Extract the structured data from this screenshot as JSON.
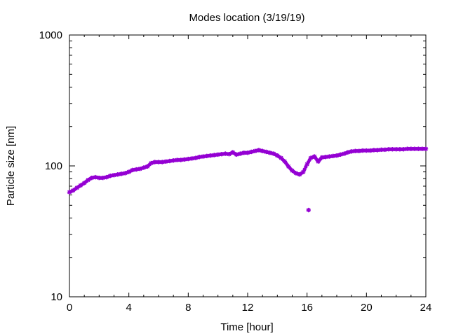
{
  "chart_data": {
    "type": "scatter",
    "title": "Modes location (3/19/19)",
    "xlabel": "Time [hour]",
    "ylabel": "Particle size [nm]",
    "xlim": [
      0,
      24
    ],
    "ylim": [
      10,
      1000
    ],
    "yscale": "log",
    "grid": false,
    "legend": "none",
    "marker_color": "#9400d3",
    "x_ticks": [
      0,
      4,
      8,
      12,
      16,
      20,
      24
    ],
    "x_tick_labels": [
      "0",
      "4",
      "8",
      "12",
      "16",
      "20",
      "24"
    ],
    "y_ticks": [
      10,
      100,
      1000
    ],
    "y_tick_labels": [
      "10",
      "100",
      "1000"
    ],
    "series": [
      {
        "name": "",
        "points": [
          [
            0.0,
            63
          ],
          [
            0.25,
            65
          ],
          [
            0.5,
            68
          ],
          [
            0.75,
            71
          ],
          [
            1.0,
            74
          ],
          [
            1.25,
            78
          ],
          [
            1.5,
            81
          ],
          [
            1.75,
            82
          ],
          [
            2.0,
            81
          ],
          [
            2.25,
            81
          ],
          [
            2.5,
            82
          ],
          [
            2.75,
            84
          ],
          [
            3.0,
            85
          ],
          [
            3.25,
            86
          ],
          [
            3.5,
            87
          ],
          [
            3.75,
            88
          ],
          [
            4.0,
            90
          ],
          [
            4.25,
            93
          ],
          [
            4.5,
            94
          ],
          [
            4.75,
            95
          ],
          [
            5.0,
            97
          ],
          [
            5.25,
            99
          ],
          [
            5.5,
            105
          ],
          [
            5.75,
            107
          ],
          [
            6.0,
            107
          ],
          [
            6.25,
            107
          ],
          [
            6.5,
            108
          ],
          [
            6.75,
            109
          ],
          [
            7.0,
            110
          ],
          [
            7.25,
            111
          ],
          [
            7.5,
            111
          ],
          [
            7.75,
            112
          ],
          [
            8.0,
            113
          ],
          [
            8.25,
            114
          ],
          [
            8.5,
            115
          ],
          [
            8.75,
            117
          ],
          [
            9.0,
            118
          ],
          [
            9.25,
            119
          ],
          [
            9.5,
            120
          ],
          [
            9.75,
            121
          ],
          [
            10.0,
            122
          ],
          [
            10.25,
            123
          ],
          [
            10.5,
            124
          ],
          [
            10.75,
            123
          ],
          [
            11.0,
            127
          ],
          [
            11.25,
            122
          ],
          [
            11.5,
            124
          ],
          [
            11.75,
            126
          ],
          [
            12.0,
            126
          ],
          [
            12.25,
            128
          ],
          [
            12.5,
            130
          ],
          [
            12.75,
            132
          ],
          [
            13.0,
            130
          ],
          [
            13.25,
            128
          ],
          [
            13.5,
            126
          ],
          [
            13.75,
            124
          ],
          [
            14.0,
            120
          ],
          [
            14.25,
            115
          ],
          [
            14.5,
            108
          ],
          [
            14.75,
            99
          ],
          [
            15.0,
            92
          ],
          [
            15.25,
            88
          ],
          [
            15.5,
            86
          ],
          [
            15.75,
            90
          ],
          [
            16.0,
            103
          ],
          [
            16.1,
            46
          ],
          [
            16.25,
            115
          ],
          [
            16.5,
            118
          ],
          [
            16.75,
            108
          ],
          [
            17.0,
            116
          ],
          [
            17.25,
            117
          ],
          [
            17.5,
            118
          ],
          [
            17.75,
            119
          ],
          [
            18.0,
            120
          ],
          [
            18.25,
            122
          ],
          [
            18.5,
            124
          ],
          [
            18.75,
            127
          ],
          [
            19.0,
            129
          ],
          [
            19.25,
            130
          ],
          [
            19.5,
            130
          ],
          [
            19.75,
            131
          ],
          [
            20.0,
            131
          ],
          [
            20.25,
            131
          ],
          [
            20.5,
            132
          ],
          [
            20.75,
            132
          ],
          [
            21.0,
            133
          ],
          [
            21.25,
            133
          ],
          [
            21.5,
            134
          ],
          [
            21.75,
            134
          ],
          [
            22.0,
            134
          ],
          [
            22.25,
            134
          ],
          [
            22.5,
            134
          ],
          [
            22.75,
            135
          ],
          [
            23.0,
            135
          ],
          [
            23.25,
            135
          ],
          [
            23.5,
            135
          ],
          [
            23.75,
            135
          ],
          [
            24.0,
            135
          ]
        ]
      }
    ]
  }
}
